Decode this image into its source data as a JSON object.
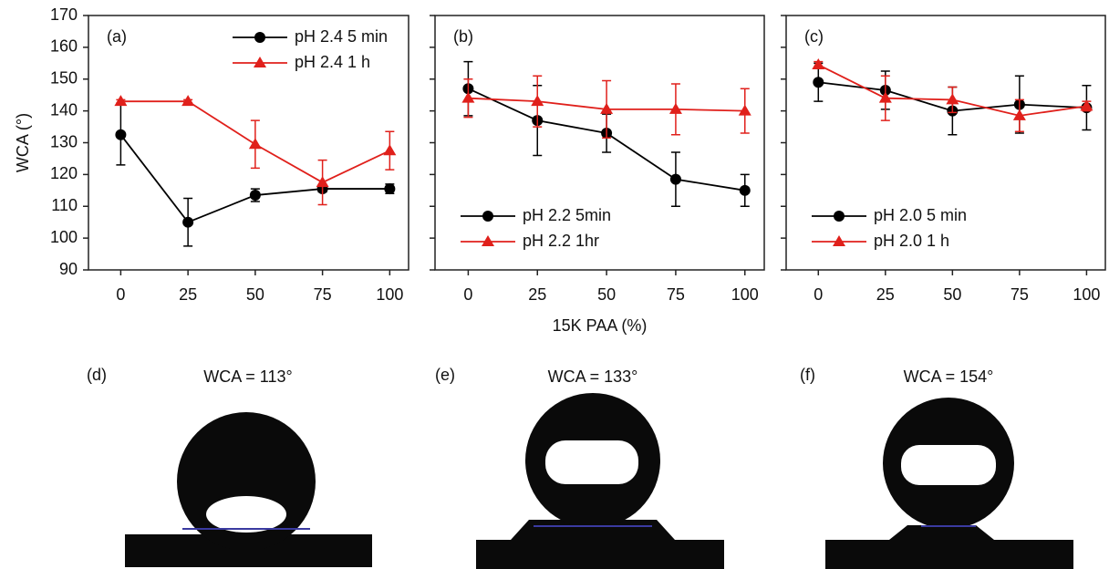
{
  "chart_data": [
    {
      "type": "line",
      "panel_label": "(a)",
      "ylabel": "WCA (°)",
      "x": [
        0,
        25,
        50,
        75,
        100
      ],
      "xlim": [
        -12,
        107
      ],
      "xticks": [
        0,
        25,
        50,
        75,
        100
      ],
      "ylim": [
        90,
        170
      ],
      "yticks": [
        90,
        100,
        110,
        120,
        130,
        140,
        150,
        160,
        170
      ],
      "legend": "upper right",
      "series": [
        {
          "name": "pH 2.4 5 min",
          "color": "#000000",
          "marker": "circle",
          "values": [
            132.5,
            105,
            113.5,
            115.5,
            115.5
          ],
          "errors": [
            9.5,
            7.5,
            2,
            1,
            1.5
          ]
        },
        {
          "name": "pH 2.4 1 h",
          "color": "#e0201b",
          "marker": "triangle",
          "values": [
            143,
            143,
            129.5,
            117.5,
            127.5
          ],
          "errors": [
            0.5,
            0.5,
            7.5,
            7,
            6
          ]
        }
      ]
    },
    {
      "type": "line",
      "panel_label": "(b)",
      "xlabel": "15K PAA (%)",
      "x": [
        0,
        25,
        50,
        75,
        100
      ],
      "xlim": [
        -12,
        107
      ],
      "xticks": [
        0,
        25,
        50,
        75,
        100
      ],
      "ylim": [
        90,
        170
      ],
      "yticks": [
        90,
        100,
        110,
        120,
        130,
        140,
        150,
        160,
        170
      ],
      "legend": "lower left",
      "series": [
        {
          "name": "pH 2.2 5min",
          "color": "#000000",
          "marker": "circle",
          "values": [
            147,
            137,
            133,
            118.5,
            115
          ],
          "errors": [
            8.5,
            11,
            6,
            8.5,
            5
          ]
        },
        {
          "name": "pH 2.2 1hr",
          "color": "#e0201b",
          "marker": "triangle",
          "values": [
            144,
            143,
            140.5,
            140.5,
            140
          ],
          "errors": [
            6,
            8,
            9,
            8,
            7
          ]
        }
      ]
    },
    {
      "type": "line",
      "panel_label": "(c)",
      "x": [
        0,
        25,
        50,
        75,
        100
      ],
      "xlim": [
        -12,
        107
      ],
      "xticks": [
        0,
        25,
        50,
        75,
        100
      ],
      "ylim": [
        90,
        170
      ],
      "yticks": [
        90,
        100,
        110,
        120,
        130,
        140,
        150,
        160,
        170
      ],
      "legend": "lower left",
      "series": [
        {
          "name": "pH 2.0 5 min",
          "color": "#000000",
          "marker": "circle",
          "values": [
            149,
            146.5,
            140,
            142,
            141
          ],
          "errors": [
            6,
            6,
            7.5,
            9,
            7
          ]
        },
        {
          "name": "pH 2.0 1 h",
          "color": "#e0201b",
          "marker": "triangle",
          "values": [
            154.5,
            144,
            143.5,
            138.5,
            141.5
          ],
          "errors": [
            1,
            7,
            4,
            5,
            1.5
          ]
        }
      ]
    }
  ],
  "photos": [
    {
      "label": "(d)",
      "caption": "WCA = 113°"
    },
    {
      "label": "(e)",
      "caption": "WCA = 133°"
    },
    {
      "label": "(f)",
      "caption": "WCA = 154°"
    }
  ]
}
